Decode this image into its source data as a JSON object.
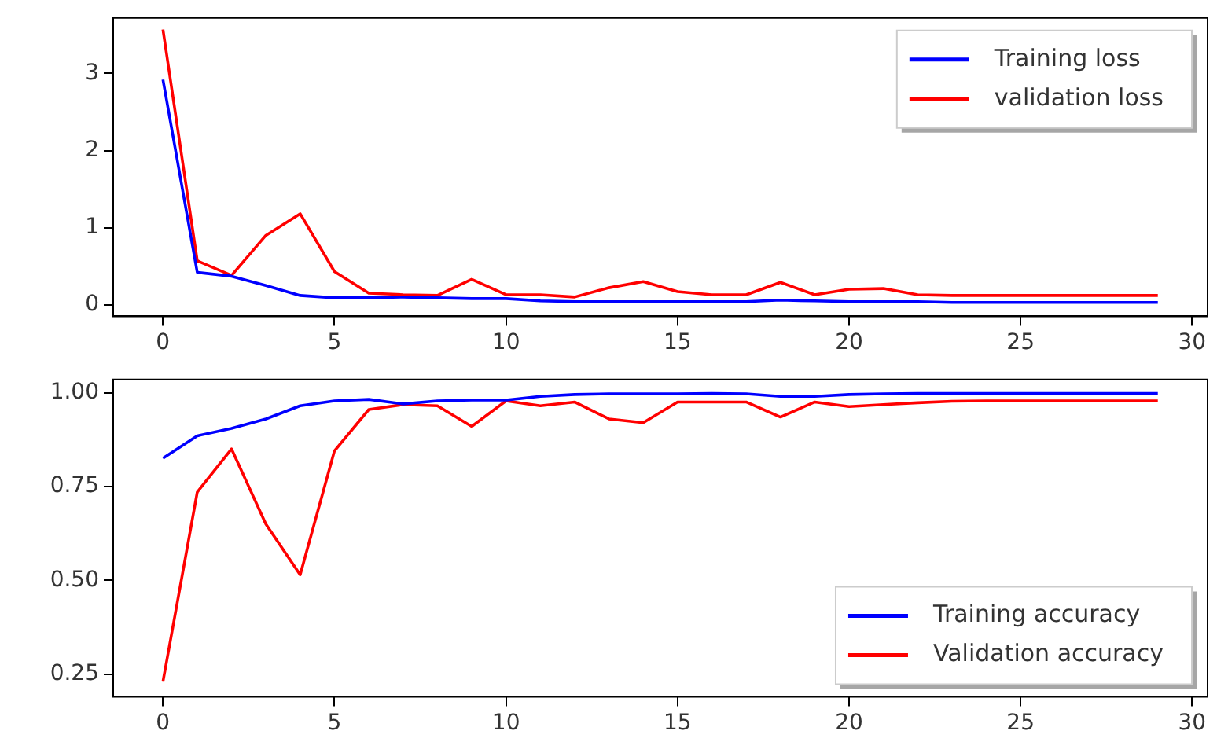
{
  "chart_data": [
    {
      "type": "line",
      "x": [
        0,
        1,
        2,
        3,
        4,
        5,
        6,
        7,
        8,
        9,
        10,
        11,
        12,
        13,
        14,
        15,
        16,
        17,
        18,
        19,
        20,
        21,
        22,
        23,
        24,
        25,
        26,
        27,
        28,
        29
      ],
      "xlim": [
        -1.45,
        30.45
      ],
      "xticks": [
        0,
        5,
        10,
        15,
        20,
        25,
        30
      ],
      "ylim": [
        -0.15,
        3.72
      ],
      "yticks": [
        0,
        1,
        2,
        3
      ],
      "grid": false,
      "legend": "top right",
      "line_style": "solid",
      "marker": "none",
      "series": [
        {
          "name": "Training loss",
          "color": "#0000ff",
          "values": [
            2.92,
            0.42,
            0.37,
            0.25,
            0.12,
            0.09,
            0.09,
            0.1,
            0.09,
            0.08,
            0.08,
            0.05,
            0.04,
            0.04,
            0.04,
            0.04,
            0.04,
            0.04,
            0.06,
            0.05,
            0.04,
            0.04,
            0.04,
            0.03,
            0.03,
            0.03,
            0.03,
            0.03,
            0.03,
            0.03
          ]
        },
        {
          "name": "validation loss",
          "color": "#ff0000",
          "values": [
            3.57,
            0.57,
            0.38,
            0.9,
            1.18,
            0.43,
            0.15,
            0.13,
            0.12,
            0.33,
            0.13,
            0.13,
            0.1,
            0.22,
            0.3,
            0.17,
            0.13,
            0.13,
            0.29,
            0.13,
            0.2,
            0.21,
            0.13,
            0.12,
            0.12,
            0.12,
            0.12,
            0.12,
            0.12,
            0.12
          ]
        }
      ]
    },
    {
      "type": "line",
      "x": [
        0,
        1,
        2,
        3,
        4,
        5,
        6,
        7,
        8,
        9,
        10,
        11,
        12,
        13,
        14,
        15,
        16,
        17,
        18,
        19,
        20,
        21,
        22,
        23,
        24,
        25,
        26,
        27,
        28,
        29
      ],
      "xlim": [
        -1.45,
        30.45
      ],
      "xticks": [
        0,
        5,
        10,
        15,
        20,
        25,
        30
      ],
      "ylim": [
        0.19,
        1.035
      ],
      "yticks": [
        {
          "value": 0.25,
          "label": "0.25"
        },
        {
          "value": 0.5,
          "label": "0.50"
        },
        {
          "value": 0.75,
          "label": "0.75"
        },
        {
          "value": 1,
          "label": "1.00"
        }
      ],
      "grid": false,
      "legend": "bottom right",
      "line_style": "solid",
      "marker": "none",
      "series": [
        {
          "name": "Training accuracy",
          "color": "#0000ff",
          "values": [
            0.825,
            0.885,
            0.905,
            0.93,
            0.965,
            0.978,
            0.982,
            0.97,
            0.978,
            0.98,
            0.98,
            0.99,
            0.995,
            0.997,
            0.997,
            0.997,
            0.998,
            0.997,
            0.99,
            0.99,
            0.995,
            0.997,
            0.998,
            0.998,
            0.998,
            0.998,
            0.998,
            0.998,
            0.998,
            0.998
          ]
        },
        {
          "name": "Validation accuracy",
          "color": "#ff0000",
          "values": [
            0.23,
            0.735,
            0.85,
            0.65,
            0.515,
            0.845,
            0.955,
            0.968,
            0.965,
            0.91,
            0.978,
            0.965,
            0.975,
            0.93,
            0.92,
            0.975,
            0.975,
            0.975,
            0.935,
            0.975,
            0.963,
            0.968,
            0.973,
            0.977,
            0.978,
            0.978,
            0.978,
            0.978,
            0.978,
            0.978
          ]
        }
      ]
    }
  ]
}
